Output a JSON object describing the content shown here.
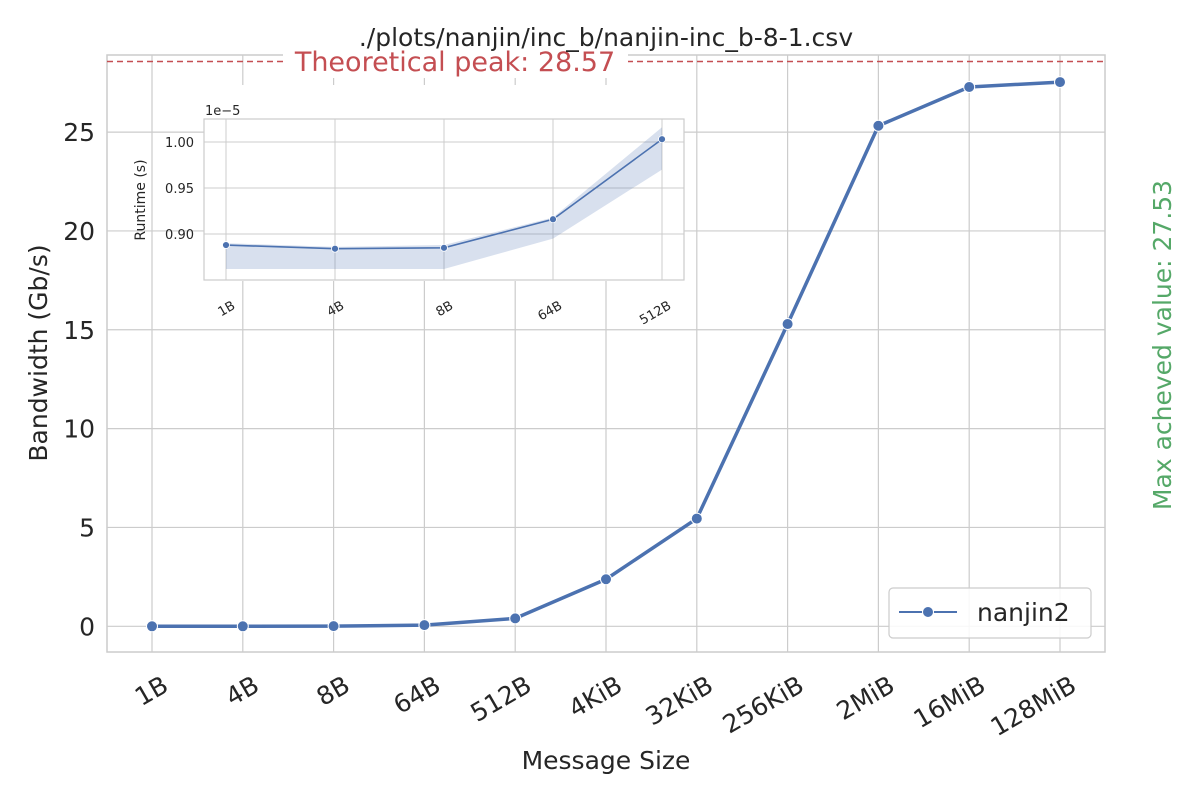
{
  "chart_data": [
    {
      "type": "line",
      "title": "./plots/nanjin/inc_b/nanjin-inc_b-8-1.csv",
      "xlabel": "Message Size",
      "ylabel": "Bandwidth (Gb/s)",
      "categories": [
        "1B",
        "4B",
        "8B",
        "64B",
        "512B",
        "4KiB",
        "32KiB",
        "256KiB",
        "2MiB",
        "16MiB",
        "128MiB"
      ],
      "series": [
        {
          "name": "nanjin2",
          "values": [
            0.0,
            0.0,
            0.01,
            0.06,
            0.4,
            2.38,
            5.45,
            15.29,
            25.32,
            27.28,
            27.53
          ]
        }
      ],
      "ylim": [
        -1.3,
        28.9
      ],
      "yticks": [
        "0",
        "5",
        "10",
        "15",
        "20",
        "25"
      ],
      "grid": true,
      "legend_position": "lower-right",
      "peak_label": "Theoretical peak: 28.57",
      "peak_value": 28.57,
      "max_label": "Max acheved value: 27.53",
      "colors": {
        "line": "#4c72b0",
        "peak": "#c44e52",
        "max": "#55a868"
      }
    },
    {
      "type": "line",
      "xlabel": "",
      "ylabel": "Runtime (s)",
      "scale_label": "1e−5",
      "categories": [
        "1B",
        "4B",
        "8B",
        "64B",
        "512B"
      ],
      "values": [
        0.888,
        0.884,
        0.885,
        0.916,
        1.003
      ],
      "band_low": [
        0.862,
        0.862,
        0.862,
        0.895,
        0.97
      ],
      "band_high": [
        0.89,
        0.886,
        0.888,
        0.918,
        1.016
      ],
      "ylim": [
        0.85,
        1.025
      ],
      "yticks": [
        "0.90",
        "0.95",
        "1.00"
      ],
      "grid": true
    }
  ]
}
